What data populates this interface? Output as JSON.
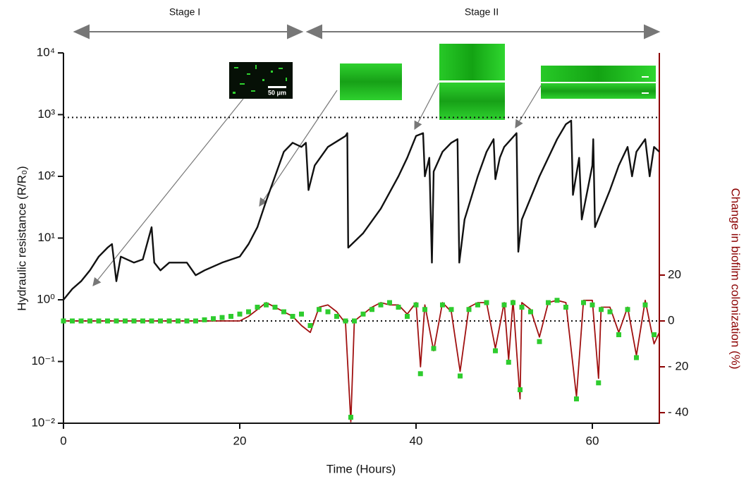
{
  "chart_data": {
    "type": "line",
    "xlabel": "Time (Hours)",
    "ylabel": "Hydraulic resistance (R/R₀)",
    "y2label": "Change in biofilm colonization (%)",
    "annotations": [
      "Stage I",
      "Stage II",
      "50 μm"
    ],
    "xlim": [
      0,
      67.6
    ],
    "xticks": [
      0,
      20,
      40,
      60
    ],
    "ylim": [
      0.01,
      10000
    ],
    "ylog": true,
    "yticks": [
      {
        "value": 10000,
        "label": "10⁴"
      },
      {
        "value": 1000,
        "label": "10³"
      },
      {
        "value": 100,
        "label": "10²"
      },
      {
        "value": 10,
        "label": "10¹"
      },
      {
        "value": 1,
        "label": "10⁰"
      },
      {
        "value": 0.1,
        "label": "10⁻¹"
      },
      {
        "value": 0.01,
        "label": "10⁻²"
      }
    ],
    "y2lim": [
      -44.6,
      116.9
    ],
    "y2ticks": [
      20,
      0,
      {
        "value": -20,
        "label": "- 20"
      },
      {
        "value": -40,
        "label": "- 40"
      }
    ],
    "hlines": [
      {
        "value": 900,
        "axis": "y"
      },
      {
        "value": 0,
        "axis": "y2"
      }
    ],
    "series": [
      {
        "kind": "line",
        "color": "#111111",
        "x": [
          0,
          1,
          2,
          3,
          4,
          5,
          5.5,
          6,
          6.5,
          8,
          9,
          10,
          10.3,
          11,
          12,
          14,
          15,
          16,
          18,
          20,
          21,
          22,
          23,
          24,
          25,
          26,
          27,
          27.5,
          27.8,
          28.5,
          30,
          32,
          32.2,
          32.3,
          34,
          36,
          38,
          39,
          40,
          40.8,
          41,
          41.5,
          41.8,
          42,
          43,
          44,
          44.7,
          44.9,
          45.5,
          47,
          48,
          48.8,
          49,
          49.5,
          50,
          51.4,
          51.6,
          52,
          54,
          56,
          57,
          57.6,
          57.8,
          58.5,
          58.8,
          60,
          60.1,
          60.3,
          62,
          63,
          64,
          64.5,
          65,
          66,
          66.5,
          67,
          67.6
        ],
        "values": [
          1,
          1.5,
          2,
          3,
          5,
          7,
          8,
          2,
          5,
          4,
          4.5,
          15,
          4,
          3,
          4,
          4,
          2.5,
          3,
          4,
          5,
          8,
          15,
          40,
          100,
          250,
          350,
          300,
          350,
          60,
          150,
          300,
          450,
          500,
          7,
          12,
          30,
          100,
          200,
          450,
          500,
          100,
          200,
          4,
          120,
          250,
          350,
          400,
          4,
          20,
          100,
          250,
          400,
          90,
          200,
          300,
          500,
          6,
          20,
          100,
          400,
          700,
          800,
          50,
          200,
          20,
          150,
          400,
          15,
          60,
          150,
          300,
          100,
          250,
          400,
          100,
          300,
          250
        ]
      },
      {
        "kind": "line",
        "axis": "y2",
        "color": "#a01010",
        "x": [
          0,
          16,
          17,
          18,
          19,
          20,
          21,
          22,
          23,
          24,
          25,
          26,
          27,
          28,
          29,
          30,
          31,
          32,
          32.6,
          33,
          34,
          35,
          36,
          37,
          38,
          39,
          40,
          40.5,
          41,
          42,
          43,
          44,
          45,
          46,
          47,
          48,
          49,
          50,
          50.5,
          51,
          51.8,
          52,
          53,
          54,
          55,
          56,
          57,
          58.2,
          59,
          60,
          60.7,
          61,
          62,
          63,
          64,
          65,
          66,
          67,
          67.6
        ],
        "values": [
          0,
          0,
          0,
          0,
          0,
          0,
          2,
          5,
          8,
          6,
          4,
          2,
          -2,
          -5,
          6,
          7,
          4,
          -1,
          -44,
          0,
          3,
          6,
          8,
          7,
          7,
          3,
          8,
          -20,
          7,
          -13,
          8,
          4,
          -22,
          6,
          8,
          8,
          -12,
          8,
          -17,
          9,
          -34,
          8,
          5,
          -7,
          8,
          9,
          8,
          -33,
          9,
          9,
          -25,
          6,
          6,
          -5,
          6,
          -15,
          9,
          -10,
          -5
        ]
      },
      {
        "kind": "scatter",
        "axis": "y2",
        "color": "#2ecc2e",
        "x": [
          0,
          1,
          2,
          3,
          4,
          5,
          6,
          7,
          8,
          9,
          10,
          11,
          12,
          13,
          14,
          15,
          16,
          17,
          18,
          19,
          20,
          21,
          22,
          23,
          24,
          25,
          26,
          27,
          28,
          29,
          30,
          31,
          32,
          32.6,
          33,
          34,
          35,
          36,
          37,
          38,
          39,
          40,
          40.5,
          41,
          42,
          43,
          44,
          45,
          46,
          47,
          48,
          49,
          50,
          50.5,
          51,
          51.8,
          52,
          53,
          54,
          55,
          56,
          57,
          58.2,
          59,
          60,
          60.7,
          61,
          62,
          63,
          64,
          65,
          66,
          67
        ],
        "values": [
          0,
          0,
          0,
          0,
          0,
          0,
          0,
          0,
          0,
          0,
          0,
          0,
          0,
          0,
          0,
          0,
          0.5,
          1,
          1.5,
          2,
          3,
          4,
          6,
          7,
          6,
          4,
          2,
          3,
          -2,
          5,
          4,
          2,
          0,
          -42,
          0,
          3,
          5,
          7,
          8,
          6,
          2,
          7,
          -23,
          5,
          -12,
          7,
          5,
          -24,
          5,
          7,
          8,
          -13,
          7,
          -18,
          8,
          -30,
          6,
          4,
          -9,
          8,
          9,
          6,
          -34,
          8,
          7,
          -27,
          5,
          4,
          -6,
          5,
          -16,
          7,
          -6
        ]
      }
    ]
  }
}
